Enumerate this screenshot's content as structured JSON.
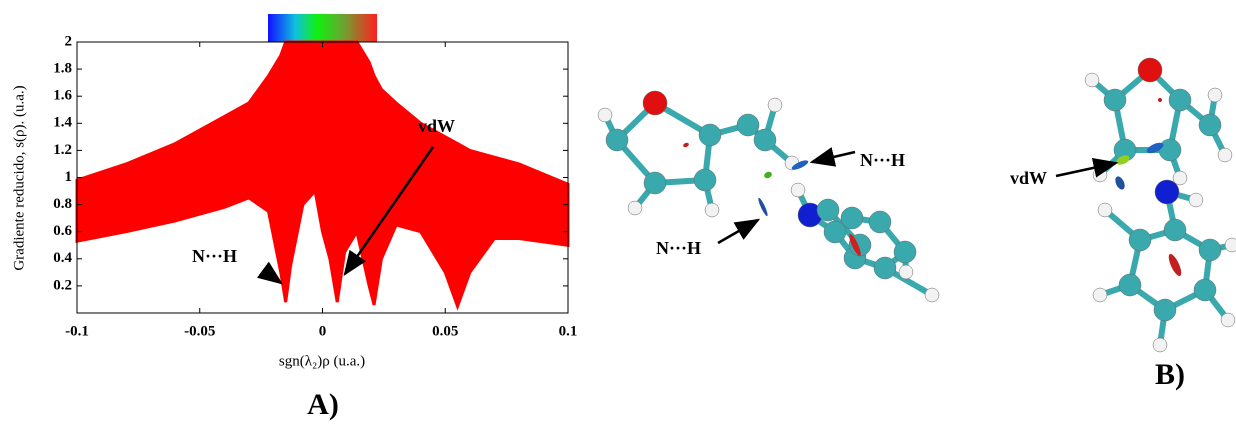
{
  "chart_data": {
    "type": "range-area",
    "x_label": "sgn(λ₂)ρ (u.a.)",
    "y_label": "Gradiente reducido, s(ρ). (u.a.)",
    "x": [
      -0.1,
      -0.08,
      -0.06,
      -0.04,
      -0.03,
      -0.022,
      -0.017,
      -0.015,
      -0.013,
      -0.008,
      -0.003,
      0,
      0.003,
      0.006,
      0.009,
      0.014,
      0.019,
      0.021,
      0.024,
      0.03,
      0.04,
      0.05,
      0.055,
      0.06,
      0.07,
      0.08,
      0.1
    ],
    "lower": [
      0.53,
      0.6,
      0.68,
      0.78,
      0.85,
      0.75,
      0.3,
      0.08,
      0.35,
      0.8,
      0.9,
      0.6,
      0.4,
      0.08,
      0.45,
      0.6,
      0.2,
      0.06,
      0.4,
      0.65,
      0.6,
      0.3,
      0.05,
      0.3,
      0.55,
      0.55,
      0.5
    ],
    "upper": [
      0.98,
      1.1,
      1.25,
      1.45,
      1.55,
      1.75,
      1.9,
      2,
      2,
      2,
      2,
      2,
      2,
      2,
      2,
      2,
      1.85,
      1.75,
      1.65,
      1.55,
      1.4,
      1.3,
      1.25,
      1.2,
      1.15,
      1.1,
      0.95
    ],
    "color": "#ff0000",
    "xlim": [
      -0.1,
      0.1
    ],
    "ylim": [
      0,
      2
    ],
    "xticks": [
      -0.1,
      -0.05,
      0,
      0.05,
      0.1
    ],
    "yticks": [
      0.2,
      0.4,
      0.6,
      0.8,
      1,
      1.2,
      1.4,
      1.6,
      1.8,
      2
    ],
    "annotations": [
      "N···H",
      "vdW"
    ],
    "panel_label": "A)"
  },
  "panel_b": {
    "labels": [
      "N···H",
      "N···H",
      "vdW"
    ],
    "panel_label": "B)"
  }
}
